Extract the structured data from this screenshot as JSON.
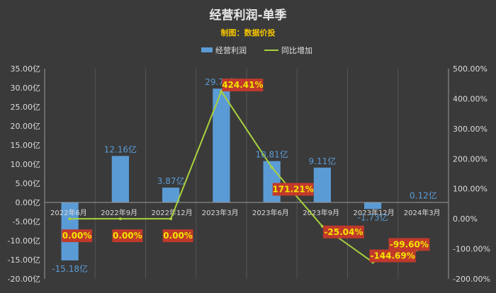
{
  "chart_data": {
    "type": "bar",
    "title": "经营利润-单季",
    "subtitle": "制图：数据价投",
    "categories": [
      "2022年6月",
      "2022年9月",
      "2022年12月",
      "2023年3月",
      "2023年6月",
      "2023年9月",
      "2023年12月",
      "2024年3月"
    ],
    "series": [
      {
        "name": "经营利润",
        "type": "bar",
        "axis": "left",
        "color": "#5b9bd5",
        "values": [
          -15.18,
          12.16,
          3.87,
          29.78,
          10.81,
          9.11,
          -1.73,
          0.12
        ],
        "labels": [
          "-15.18亿",
          "12.16亿",
          "3.87亿",
          "29.78亿",
          "10.81亿",
          "9.11亿",
          "-1.73亿",
          "0.12亿"
        ]
      },
      {
        "name": "同比增加",
        "type": "line",
        "axis": "right",
        "color": "#a9d23d",
        "values": [
          0.0,
          0.0,
          0.0,
          424.41,
          171.21,
          -25.04,
          -144.69,
          -99.6
        ],
        "labels": [
          "0.00%",
          "0.00%",
          "0.00%",
          "424.41%",
          "171.21%",
          "-25.04%",
          "-144.69%",
          "-99.60%"
        ]
      }
    ],
    "ylim_left": [
      -20,
      35
    ],
    "yticks_left": [
      "35.00亿",
      "30.00亿",
      "25.00亿",
      "20.00亿",
      "15.00亿",
      "10.00亿",
      "5.00亿",
      "0.00亿",
      "-5.00亿",
      "-10.00亿",
      "-15.00亿",
      "-20.00亿"
    ],
    "ylim_right": [
      -200,
      500
    ],
    "yticks_right": [
      "500.00%",
      "400.00%",
      "300.00%",
      "200.00%",
      "100.00%",
      "0.00%",
      "-100.00%",
      "-200.00%"
    ],
    "legend_position": "top",
    "grid": "vertical",
    "label_box_color": "#c0392b"
  }
}
